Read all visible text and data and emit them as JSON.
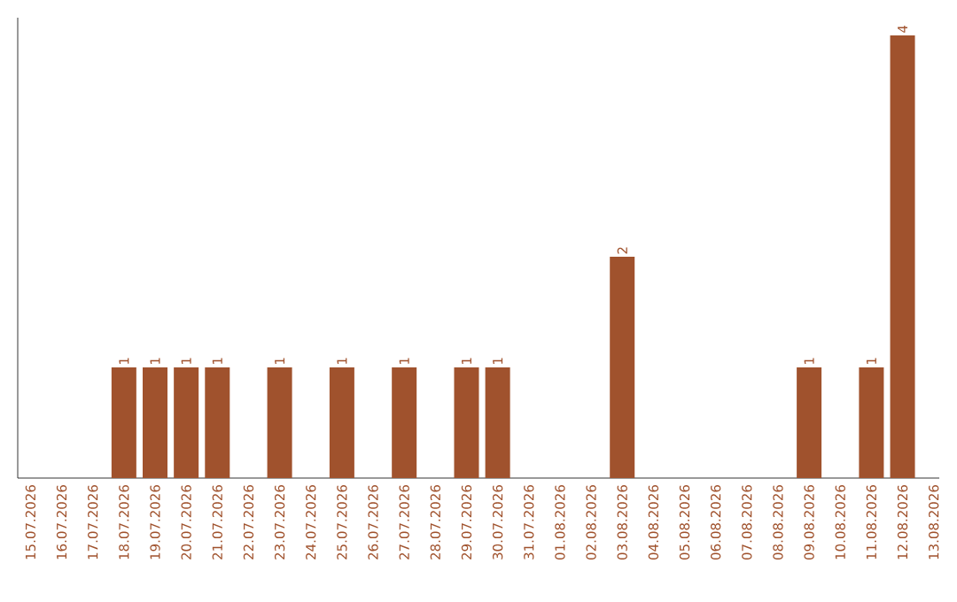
{
  "chart_data": {
    "type": "bar",
    "categories": [
      "15.07.2026",
      "16.07.2026",
      "17.07.2026",
      "18.07.2026",
      "19.07.2026",
      "20.07.2026",
      "21.07.2026",
      "22.07.2026",
      "23.07.2026",
      "24.07.2026",
      "25.07.2026",
      "26.07.2026",
      "27.07.2026",
      "28.07.2026",
      "29.07.2026",
      "30.07.2026",
      "31.07.2026",
      "01.08.2026",
      "02.08.2026",
      "03.08.2026",
      "04.08.2026",
      "05.08.2026",
      "06.08.2026",
      "07.08.2026",
      "08.08.2026",
      "09.08.2026",
      "10.08.2026",
      "11.08.2026",
      "12.08.2026",
      "13.08.2026"
    ],
    "values": [
      0,
      0,
      0,
      1,
      1,
      1,
      1,
      0,
      1,
      0,
      1,
      0,
      1,
      0,
      1,
      1,
      0,
      0,
      0,
      2,
      0,
      0,
      0,
      0,
      0,
      1,
      0,
      1,
      4,
      0
    ],
    "value_labels": [
      null,
      null,
      null,
      "1",
      "1",
      "1",
      "1",
      null,
      "1",
      null,
      "1",
      null,
      "1",
      null,
      "1",
      "1",
      null,
      null,
      null,
      "2",
      null,
      null,
      null,
      null,
      null,
      "1",
      null,
      "1",
      "4",
      null
    ],
    "color": "#a0522d",
    "tick_labels": "x"
  }
}
